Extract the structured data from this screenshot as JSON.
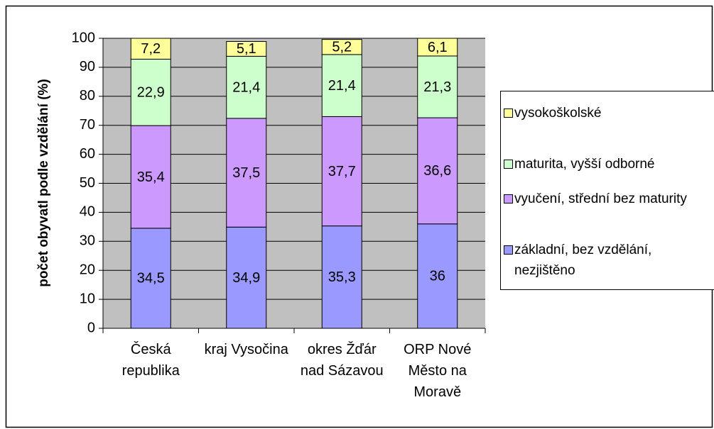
{
  "chart_data": {
    "type": "stacked_bar",
    "y_label": "počet obyvatl podle vzdělání (%)",
    "categories": [
      "Česká republika",
      "kraj Vysočina",
      "okres Žďár nad Sázavou",
      "ORP Nové Město na Moravě"
    ],
    "series": [
      {
        "name": "základní, bez vzdělání, nezjištěno",
        "color": "#9999ff",
        "values": [
          34.5,
          34.9,
          35.3,
          36
        ],
        "value_labels": [
          "34,5",
          "34,9",
          "35,3",
          "36"
        ]
      },
      {
        "name": "vyučení, střední bez maturity",
        "color": "#cc99ff",
        "values": [
          35.4,
          37.5,
          37.7,
          36.6
        ],
        "value_labels": [
          "35,4",
          "37,5",
          "37,7",
          "36,6"
        ]
      },
      {
        "name": "maturita, vyšší odborné",
        "color": "#ccffcc",
        "values": [
          22.9,
          21.4,
          21.4,
          21.3
        ],
        "value_labels": [
          "22,9",
          "21,4",
          "21,4",
          "21,3"
        ]
      },
      {
        "name": "vysokoškolské",
        "color": "#ffff99",
        "values": [
          7.2,
          5.1,
          5.2,
          6.1
        ],
        "value_labels": [
          "7,2",
          "5,1",
          "5,2",
          "6,1"
        ]
      }
    ],
    "ylim": [
      0,
      100
    ],
    "yticks": [
      0,
      10,
      20,
      30,
      40,
      50,
      60,
      70,
      80,
      90,
      100
    ],
    "grid": true,
    "plot_background": "#c0c0c0",
    "legend": "right"
  }
}
